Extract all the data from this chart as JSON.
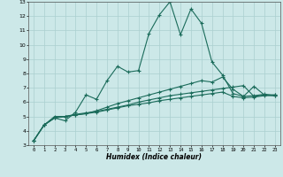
{
  "xlabel": "Humidex (Indice chaleur)",
  "bg_color": "#cce8e8",
  "grid_color": "#aacfcf",
  "line_color": "#1a6b5a",
  "xlim": [
    -0.5,
    23.5
  ],
  "ylim": [
    3,
    13
  ],
  "xticks": [
    0,
    1,
    2,
    3,
    4,
    5,
    6,
    7,
    8,
    9,
    10,
    11,
    12,
    13,
    14,
    15,
    16,
    17,
    18,
    19,
    20,
    21,
    22,
    23
  ],
  "yticks": [
    3,
    4,
    5,
    6,
    7,
    8,
    9,
    10,
    11,
    12,
    13
  ],
  "series": [
    [
      3.3,
      4.4,
      4.9,
      4.7,
      5.3,
      6.5,
      6.2,
      7.5,
      8.5,
      8.1,
      8.2,
      10.8,
      12.1,
      13.0,
      10.7,
      12.5,
      11.5,
      8.8,
      7.9,
      6.6,
      6.4,
      7.1,
      6.5,
      6.5
    ],
    [
      3.3,
      4.4,
      5.0,
      5.0,
      5.15,
      5.25,
      5.35,
      5.5,
      5.65,
      5.8,
      6.0,
      6.15,
      6.3,
      6.45,
      6.55,
      6.65,
      6.75,
      6.85,
      6.95,
      7.05,
      7.15,
      6.4,
      6.5,
      6.5
    ],
    [
      3.3,
      4.4,
      4.9,
      5.0,
      5.1,
      5.2,
      5.3,
      5.45,
      5.6,
      5.75,
      5.85,
      5.95,
      6.1,
      6.2,
      6.3,
      6.4,
      6.5,
      6.6,
      6.7,
      6.4,
      6.3,
      6.35,
      6.45,
      6.45
    ],
    [
      3.3,
      4.4,
      4.9,
      5.0,
      5.1,
      5.2,
      5.4,
      5.65,
      5.9,
      6.1,
      6.3,
      6.5,
      6.7,
      6.9,
      7.1,
      7.3,
      7.5,
      7.4,
      7.75,
      6.9,
      6.4,
      6.45,
      6.55,
      6.45
    ]
  ]
}
